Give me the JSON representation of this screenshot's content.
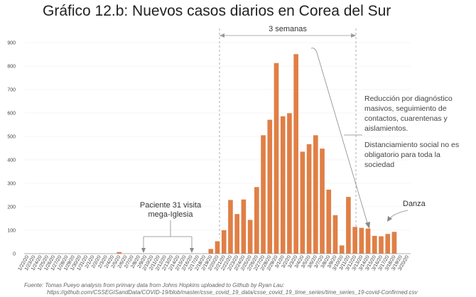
{
  "chart_data": {
    "type": "bar",
    "title": "Gráfico 12.b: Nuevos casos diarios en Corea del Sur",
    "xlabel": "",
    "ylabel": "",
    "ylim": [
      0,
      900
    ],
    "yticks": [
      0,
      100,
      200,
      300,
      400,
      500,
      600,
      700,
      800,
      900
    ],
    "bar_color": "#e07f46",
    "categories": [
      "1/22/20",
      "1/23/20",
      "1/24/20",
      "1/25/20",
      "1/26/20",
      "1/27/20",
      "1/28/20",
      "1/29/20",
      "1/30/20",
      "1/31/20",
      "2/1/20",
      "2/2/20",
      "2/3/20",
      "2/4/20",
      "2/5/20",
      "2/6/20",
      "2/7/20",
      "2/8/20",
      "2/9/20",
      "2/10/20",
      "2/11/20",
      "2/12/20",
      "2/13/20",
      "2/14/20",
      "2/15/20",
      "2/16/20",
      "2/17/20",
      "2/18/20",
      "2/19/20",
      "2/20/20",
      "2/21/20",
      "2/22/20",
      "2/23/20",
      "2/24/20",
      "2/25/20",
      "2/26/20",
      "2/27/20",
      "2/28/20",
      "2/29/20",
      "3/1/20",
      "3/2/20",
      "3/3/20",
      "3/4/20",
      "3/5/20",
      "3/6/20",
      "3/7/20",
      "3/8/20",
      "3/9/20",
      "3/10/20",
      "3/11/20",
      "3/12/20",
      "3/13/20",
      "3/14/20",
      "3/15/20",
      "3/16/20",
      "3/17/20",
      "3/18/20",
      "3/19/20",
      "3/20/20"
    ],
    "values": [
      1,
      0,
      1,
      0,
      1,
      1,
      0,
      0,
      0,
      1,
      1,
      0,
      0,
      0,
      7,
      0,
      0,
      1,
      0,
      1,
      0,
      0,
      0,
      0,
      0,
      0,
      1,
      1,
      20,
      53,
      100,
      229,
      169,
      231,
      144,
      284,
      505,
      571,
      813,
      586,
      599,
      851,
      435,
      467,
      505,
      448,
      273,
      164,
      35,
      242,
      114,
      110,
      107,
      76,
      74,
      84,
      93,
      0,
      0
    ],
    "annotations": {
      "three_weeks": "3 semanas",
      "patient31_line1": "Paciente 31 visita",
      "patient31_line2": "mega-Iglesia",
      "reduction_lines": [
        "Reducción por diagnóstico",
        "masivos, seguimiento de",
        "contactos, cuarentenas y",
        "aislamientos."
      ],
      "distancing_lines": [
        "Distanciamiento social no es",
        "obligatorio para toda la",
        "sociedad"
      ],
      "dance": "Danza"
    },
    "source_line1": "Fuente: Tomas Pueyo analysis from primary data from Johns Hopkins uploaded to Github by Ryan Lau:",
    "source_line2": "https://github.com/CSSEGISandData/COVID-19/blob/master/csse_covid_19_data/csse_covid_19_time_series/time_series_19-covid-Confirmed.csv"
  }
}
